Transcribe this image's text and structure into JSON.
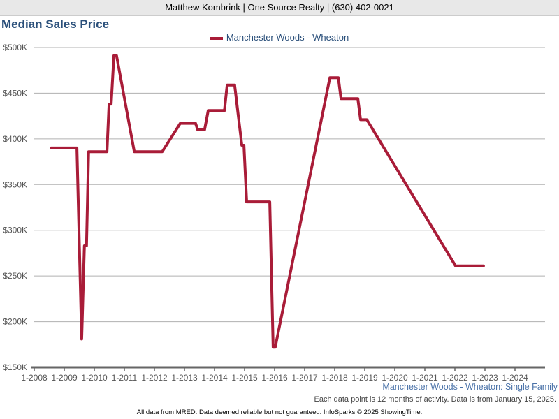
{
  "header": {
    "agent_line": "Matthew Kombrink | One Source Realty | (630) 402-0021"
  },
  "chart_data": {
    "type": "line",
    "title": "Median Sales Price",
    "legend": [
      "Manchester Woods - Wheaton"
    ],
    "legend_placement": "top-center",
    "color": "#a91c38",
    "xlabel": "",
    "ylabel": "",
    "xlim": [
      2008,
      2025.0
    ],
    "ylim": [
      150000,
      500000
    ],
    "yticks": [
      150000,
      200000,
      250000,
      300000,
      350000,
      400000,
      450000,
      500000
    ],
    "ytick_labels": [
      "$150K",
      "$200K",
      "$250K",
      "$300K",
      "$350K",
      "$400K",
      "$450K",
      "$500K"
    ],
    "xticks": [
      2008,
      2009,
      2010,
      2011,
      2012,
      2013,
      2014,
      2015,
      2016,
      2017,
      2018,
      2019,
      2020,
      2021,
      2022,
      2023,
      2024
    ],
    "xtick_labels": [
      "1-2008",
      "1-2009",
      "1-2010",
      "1-2011",
      "1-2012",
      "1-2013",
      "1-2014",
      "1-2015",
      "1-2016",
      "1-2017",
      "1-2018",
      "1-2019",
      "1-2020",
      "1-2021",
      "1-2022",
      "1-2023",
      "1-2024"
    ],
    "grid": true,
    "series": [
      {
        "name": "Manchester Woods - Wheaton",
        "points": [
          [
            2008.56,
            390000
          ],
          [
            2009.42,
            390000
          ],
          [
            2009.58,
            181000
          ],
          [
            2009.67,
            283000
          ],
          [
            2009.74,
            283000
          ],
          [
            2009.81,
            386000
          ],
          [
            2010.42,
            386000
          ],
          [
            2010.49,
            438000
          ],
          [
            2010.56,
            438000
          ],
          [
            2010.65,
            491000
          ],
          [
            2010.74,
            491000
          ],
          [
            2011.33,
            386000
          ],
          [
            2012.26,
            386000
          ],
          [
            2012.86,
            417000
          ],
          [
            2013.37,
            417000
          ],
          [
            2013.44,
            410000
          ],
          [
            2013.67,
            410000
          ],
          [
            2013.79,
            431000
          ],
          [
            2014.33,
            431000
          ],
          [
            2014.42,
            459000
          ],
          [
            2014.67,
            459000
          ],
          [
            2014.91,
            393000
          ],
          [
            2014.98,
            393000
          ],
          [
            2015.07,
            331000
          ],
          [
            2015.84,
            331000
          ],
          [
            2015.95,
            172000
          ],
          [
            2016.02,
            172000
          ],
          [
            2017.84,
            467000
          ],
          [
            2018.12,
            467000
          ],
          [
            2018.21,
            444000
          ],
          [
            2018.77,
            444000
          ],
          [
            2018.86,
            421000
          ],
          [
            2019.07,
            421000
          ],
          [
            2022.02,
            261000
          ],
          [
            2022.95,
            261000
          ]
        ]
      }
    ]
  },
  "subtitle": "Manchester Woods - Wheaton: Single Family",
  "note": "Each data point is 12 months of activity. Data is from January 15, 2025.",
  "footer": "All data from MRED. Data deemed reliable but not guaranteed. InfoSparks © 2025 ShowingTime."
}
